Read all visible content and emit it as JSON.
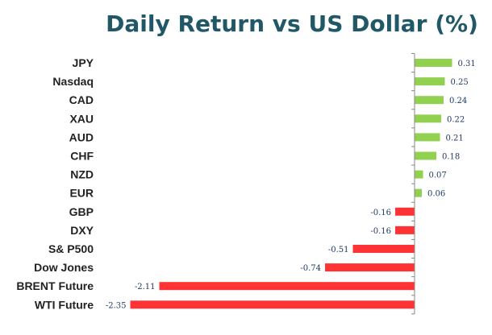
{
  "chart_data": {
    "type": "bar",
    "orientation": "horizontal",
    "title": "Daily Return vs US Dollar (%)",
    "categories": [
      "JPY",
      "Nasdaq",
      "CAD",
      "XAU",
      "AUD",
      "CHF",
      "NZD",
      "EUR",
      "GBP",
      "DXY",
      "S& P500",
      "Dow Jones",
      "BRENT Future",
      "WTI Future"
    ],
    "values": [
      0.31,
      0.25,
      0.24,
      0.22,
      0.21,
      0.18,
      0.07,
      0.06,
      -0.16,
      -0.16,
      -0.51,
      -0.74,
      -2.11,
      -2.35
    ],
    "value_labels": [
      "0.31",
      "0.25",
      "0.24",
      "0.22",
      "0.21",
      "0.18",
      "0.07",
      "0.06",
      "-0.16",
      "-0.16",
      "-0.51",
      "-0.74",
      "-2.11",
      "-2.35"
    ],
    "xlim": [
      -2.35,
      0.31
    ],
    "grid": false,
    "legend": "none",
    "colors": {
      "positive": "#92d050",
      "negative": "#ff3333",
      "title": "#215868",
      "axis": "#888888"
    }
  }
}
